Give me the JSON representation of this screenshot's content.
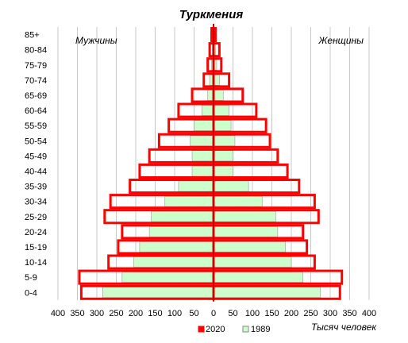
{
  "chart_data": {
    "type": "bar",
    "subtype": "population-pyramid",
    "title": "Туркмения",
    "left_label": "Мужчины",
    "right_label": "Женщины",
    "unit_label": "Тысяч человек",
    "categories": [
      "0-4",
      "5-9",
      "10-14",
      "15-19",
      "20-24",
      "25-29",
      "30-34",
      "35-39",
      "40-44",
      "45-49",
      "50-54",
      "55-59",
      "60-64",
      "65-69",
      "70-74",
      "75-79",
      "80-84",
      "85+"
    ],
    "x_ticks_left": [
      "400",
      "350",
      "300",
      "250",
      "200",
      "150",
      "100",
      "50",
      "0"
    ],
    "x_ticks_right": [
      "50",
      "100",
      "150",
      "200",
      "250",
      "300",
      "350",
      "400"
    ],
    "xlim": [
      -400,
      400
    ],
    "grid": true,
    "legend_position": "bottom-center",
    "series": [
      {
        "name": "2020",
        "color": "#ff0000",
        "style": "outline",
        "male": [
          340,
          345,
          270,
          245,
          235,
          280,
          265,
          215,
          190,
          165,
          140,
          115,
          90,
          55,
          25,
          15,
          10,
          5
        ],
        "female": [
          325,
          330,
          260,
          240,
          230,
          270,
          260,
          220,
          190,
          165,
          145,
          135,
          110,
          75,
          40,
          20,
          15,
          5
        ]
      },
      {
        "name": "1989",
        "color": "#ccffcc",
        "style": "filled",
        "male": [
          285,
          235,
          205,
          190,
          165,
          160,
          125,
          90,
          55,
          55,
          60,
          50,
          30,
          15,
          10,
          5,
          3,
          2
        ],
        "female": [
          275,
          230,
          200,
          185,
          165,
          160,
          125,
          90,
          50,
          50,
          55,
          45,
          40,
          25,
          15,
          8,
          5,
          3
        ]
      }
    ]
  }
}
